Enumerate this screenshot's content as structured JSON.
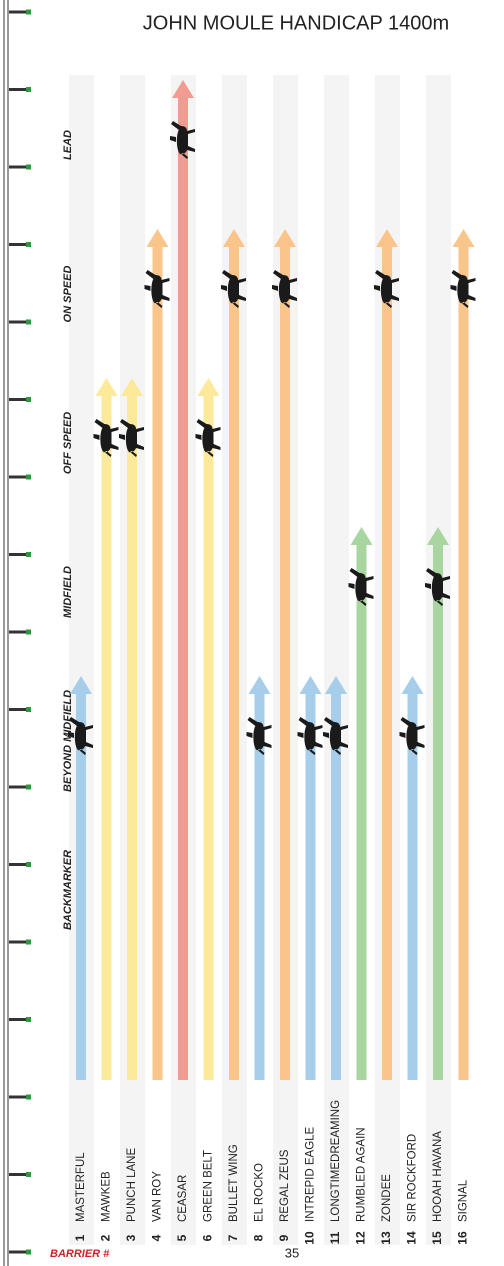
{
  "title": "JOHN MOULE HANDICAP  1400m",
  "page_number": "35",
  "barrier_label": "BARRIER #",
  "positions": [
    {
      "label": "LEAD",
      "color": "#f29b91"
    },
    {
      "label": "ON SPEED",
      "color": "#f9c58a"
    },
    {
      "label": "OFF SPEED",
      "color": "#fde99a"
    },
    {
      "label": "MIDFIELD",
      "color": "#a8d5a0"
    },
    {
      "label": "BEYOND MIDFIELD",
      "color": "#a6cdea"
    },
    {
      "label": "BACKMARKER"
    }
  ],
  "runners": [
    {
      "barrier": 1,
      "name": "MASTERFUL",
      "position": "BEYOND MIDFIELD"
    },
    {
      "barrier": 2,
      "name": "MAWKEB",
      "position": "OFF SPEED"
    },
    {
      "barrier": 3,
      "name": "PUNCH LANE",
      "position": "OFF SPEED"
    },
    {
      "barrier": 4,
      "name": "VAN ROY",
      "position": "ON SPEED"
    },
    {
      "barrier": 5,
      "name": "CEASAR",
      "position": "LEAD"
    },
    {
      "barrier": 6,
      "name": "GREEN BELT",
      "position": "OFF SPEED"
    },
    {
      "barrier": 7,
      "name": "BULLET WING",
      "position": "ON SPEED"
    },
    {
      "barrier": 8,
      "name": "EL ROCKO",
      "position": "BEYOND MIDFIELD"
    },
    {
      "barrier": 9,
      "name": "REGAL ZEUS",
      "position": "ON SPEED"
    },
    {
      "barrier": 10,
      "name": "INTREPID EAGLE",
      "position": "BEYOND MIDFIELD"
    },
    {
      "barrier": 11,
      "name": "LONGTIMEDREAMING",
      "position": "BEYOND MIDFIELD"
    },
    {
      "barrier": 12,
      "name": "RUMBLED AGAIN",
      "position": "MIDFIELD"
    },
    {
      "barrier": 13,
      "name": "ZONDEE",
      "position": "ON SPEED"
    },
    {
      "barrier": 14,
      "name": "SIR ROCKFORD",
      "position": "BEYOND MIDFIELD"
    },
    {
      "barrier": 15,
      "name": "HOOAH HAVANA",
      "position": "MIDFIELD"
    },
    {
      "barrier": 16,
      "name": "SIGNAL",
      "position": "ON SPEED"
    }
  ]
}
